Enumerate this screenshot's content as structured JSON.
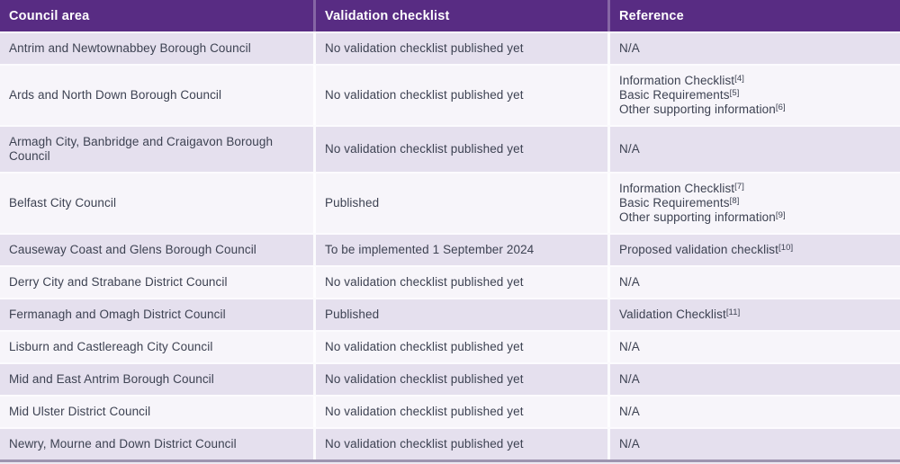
{
  "header": {
    "council_area": "Council area",
    "validation_checklist": "Validation checklist",
    "reference": "Reference"
  },
  "colors": {
    "header_bg": "#582c83",
    "header_text": "#ffffff",
    "row_odd_bg": "#e5e0ee",
    "row_even_bg": "#f7f5fa",
    "body_text": "#3d4252",
    "bottom_border": "#9e94af"
  },
  "rows": [
    {
      "council": "Antrim and Newtownabbey Borough Council",
      "checklist": "No validation checklist published yet",
      "references": [
        {
          "text": "N/A",
          "marker": ""
        }
      ]
    },
    {
      "council": "Ards and North Down Borough Council",
      "checklist": "No validation checklist published yet",
      "references": [
        {
          "text": "Information Checklist",
          "marker": "[4]"
        },
        {
          "text": "Basic Requirements",
          "marker": "[5]"
        },
        {
          "text": "Other supporting information",
          "marker": "[6]"
        }
      ]
    },
    {
      "council": "Armagh City, Banbridge and Craigavon Borough Council",
      "checklist": "No validation checklist published yet",
      "references": [
        {
          "text": "N/A",
          "marker": ""
        }
      ]
    },
    {
      "council": "Belfast City Council",
      "checklist": "Published",
      "references": [
        {
          "text": "Information Checklist",
          "marker": "[7]"
        },
        {
          "text": "Basic Requirements",
          "marker": "[8]"
        },
        {
          "text": "Other supporting information",
          "marker": "[9]"
        }
      ]
    },
    {
      "council": "Causeway Coast and Glens Borough Council",
      "checklist": "To be implemented 1 September 2024",
      "references": [
        {
          "text": "Proposed validation checklist",
          "marker": "[10]"
        }
      ]
    },
    {
      "council": "Derry City and Strabane District Council",
      "checklist": "No validation checklist published yet",
      "references": [
        {
          "text": "N/A",
          "marker": ""
        }
      ]
    },
    {
      "council": "Fermanagh and Omagh District Council",
      "checklist": "Published",
      "references": [
        {
          "text": "Validation Checklist",
          "marker": "[11]"
        }
      ]
    },
    {
      "council": "Lisburn and Castlereagh City Council",
      "checklist": "No validation checklist published yet",
      "references": [
        {
          "text": "N/A",
          "marker": ""
        }
      ]
    },
    {
      "council": "Mid and East Antrim Borough Council",
      "checklist": "No validation checklist published yet",
      "references": [
        {
          "text": "N/A",
          "marker": ""
        }
      ]
    },
    {
      "council": "Mid Ulster District Council",
      "checklist": "No validation checklist published yet",
      "references": [
        {
          "text": "N/A",
          "marker": ""
        }
      ]
    },
    {
      "council": "Newry, Mourne and Down District Council",
      "checklist": "No validation checklist published yet",
      "references": [
        {
          "text": "N/A",
          "marker": ""
        }
      ]
    }
  ]
}
